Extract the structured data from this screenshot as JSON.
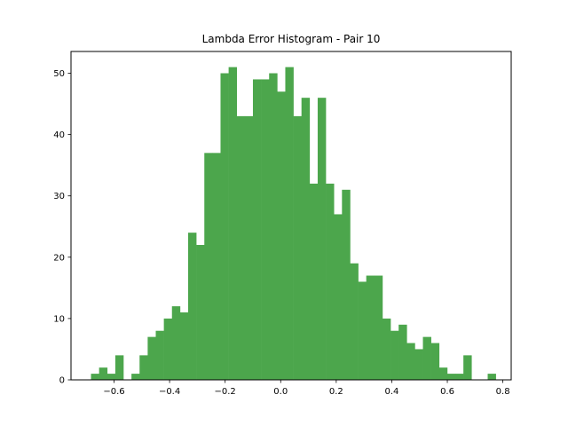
{
  "chart_data": {
    "type": "bar",
    "title": "Lambda Error Histogram - Pair 10",
    "xlabel": "",
    "ylabel": "",
    "bar_color": "#4ca64c",
    "xlim": [
      -0.755,
      0.83
    ],
    "ylim": [
      0,
      53.55
    ],
    "x_ticks": [
      -0.6,
      -0.4,
      -0.2,
      0.0,
      0.2,
      0.4,
      0.6,
      0.8
    ],
    "x_tick_labels": [
      "−0.6",
      "−0.4",
      "−0.2",
      "0.0",
      "0.2",
      "0.4",
      "0.6",
      "0.8"
    ],
    "y_ticks": [
      0,
      10,
      20,
      30,
      40,
      50
    ],
    "y_tick_labels": [
      "0",
      "10",
      "20",
      "30",
      "40",
      "50"
    ],
    "bin_start": -0.683,
    "bin_width": 0.02915,
    "values": [
      1,
      2,
      1,
      4,
      0,
      1,
      4,
      7,
      8,
      10,
      12,
      11,
      24,
      22,
      37,
      37,
      50,
      51,
      43,
      43,
      49,
      49,
      50,
      47,
      51,
      43,
      46,
      32,
      46,
      32,
      27,
      31,
      19,
      16,
      17,
      17,
      10,
      8,
      9,
      6,
      5,
      7,
      6,
      2,
      1,
      1,
      4,
      0,
      0,
      1
    ],
    "grid": false,
    "legend": "none"
  }
}
